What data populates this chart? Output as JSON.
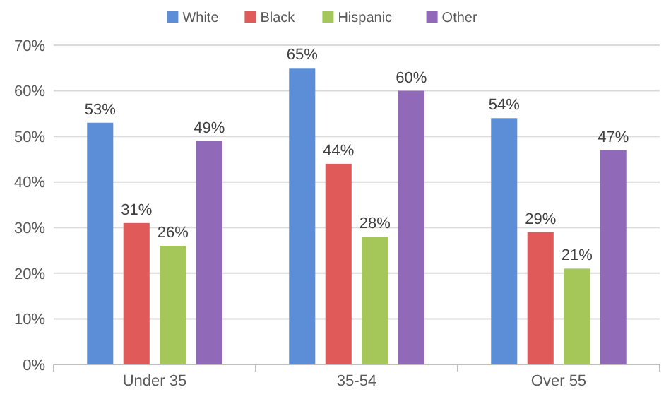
{
  "chart_data": {
    "type": "bar",
    "categories": [
      "Under 35",
      "35-54",
      "Over 55"
    ],
    "series": [
      {
        "name": "White",
        "color": "#5b8ed6",
        "values": [
          53,
          65,
          54
        ]
      },
      {
        "name": "Black",
        "color": "#e05a5a",
        "values": [
          31,
          44,
          29
        ]
      },
      {
        "name": "Hispanic",
        "color": "#a5c75a",
        "values": [
          26,
          28,
          21
        ]
      },
      {
        "name": "Other",
        "color": "#9069b8",
        "values": [
          49,
          60,
          47
        ]
      }
    ],
    "ylim": [
      0,
      70
    ],
    "yticks": [
      {
        "value": 0,
        "label": "0%"
      },
      {
        "value": 10,
        "label": "10%"
      },
      {
        "value": 20,
        "label": "20%"
      },
      {
        "value": 30,
        "label": "30%"
      },
      {
        "value": 40,
        "label": "40%"
      },
      {
        "value": 50,
        "label": "50%"
      },
      {
        "value": 60,
        "label": "60%"
      },
      {
        "value": 70,
        "label": "70%"
      }
    ],
    "value_labels": [
      [
        "53%",
        "65%",
        "54%"
      ],
      [
        "31%",
        "44%",
        "29%"
      ],
      [
        "26%",
        "28%",
        "21%"
      ],
      [
        "49%",
        "60%",
        "47%"
      ]
    ],
    "grid": "y",
    "legend": "top"
  }
}
